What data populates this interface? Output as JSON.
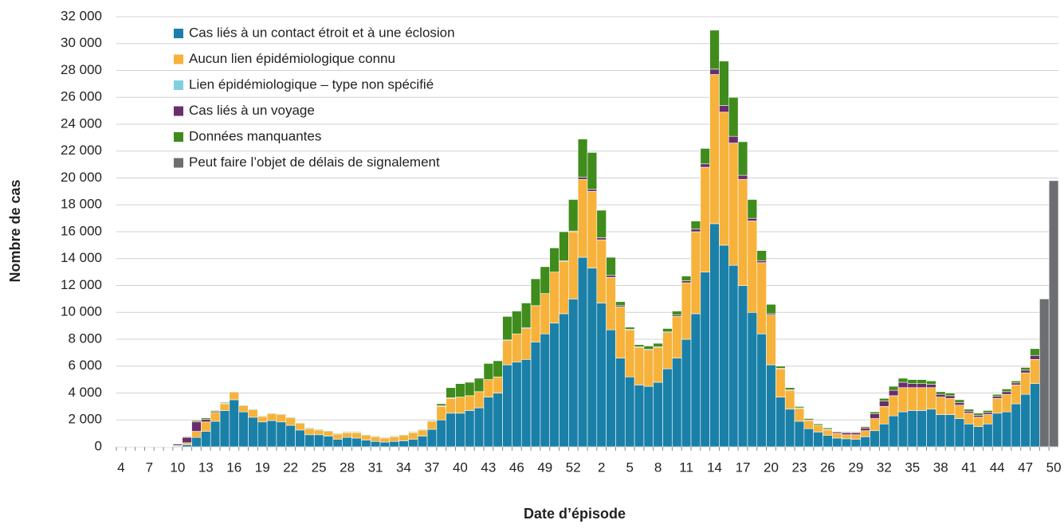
{
  "chart_data": {
    "type": "stacked_bar",
    "x_label": "Date d’épisode",
    "y_label": "Nombre de cas",
    "categories": [
      4,
      null,
      null,
      7,
      null,
      null,
      10,
      null,
      null,
      13,
      null,
      null,
      16,
      null,
      null,
      19,
      null,
      null,
      22,
      null,
      null,
      25,
      null,
      null,
      28,
      null,
      null,
      31,
      null,
      null,
      34,
      null,
      null,
      37,
      null,
      null,
      40,
      null,
      null,
      43,
      null,
      null,
      46,
      null,
      null,
      49,
      null,
      null,
      52,
      null,
      null,
      2,
      null,
      null,
      5,
      null,
      null,
      8,
      null,
      null,
      11,
      null,
      null,
      14,
      null,
      null,
      17,
      null,
      null,
      20,
      null,
      null,
      23,
      null,
      null,
      26,
      null,
      null,
      29,
      null,
      null,
      32,
      null,
      null,
      35,
      null,
      null,
      38,
      null,
      null,
      41,
      null,
      null,
      44,
      null,
      null,
      47,
      null,
      null,
      50
    ],
    "ylim": [
      0,
      32000
    ],
    "yticks": [
      0,
      {
        "value": 2000,
        "label": "2 000"
      },
      {
        "value": 4000,
        "label": "4 000"
      },
      {
        "value": 6000,
        "label": "6 000"
      },
      {
        "value": 8000,
        "label": "8 000"
      },
      {
        "value": 10000,
        "label": "10 000"
      },
      {
        "value": 12000,
        "label": "12 000"
      },
      {
        "value": 14000,
        "label": "14 000"
      },
      {
        "value": 16000,
        "label": "16 000"
      },
      {
        "value": 18000,
        "label": "18 000"
      },
      {
        "value": 20000,
        "label": "20 000"
      },
      {
        "value": 22000,
        "label": "22 000"
      },
      {
        "value": 24000,
        "label": "24 000"
      },
      {
        "value": 26000,
        "label": "26 000"
      },
      {
        "value": 28000,
        "label": "28 000"
      },
      {
        "value": 30000,
        "label": "30 000"
      },
      {
        "value": 32000,
        "label": "32 000"
      }
    ],
    "grid": true,
    "legend": "top-left",
    "series": [
      {
        "name": "Cas liés à un contact étroit et à une éclosion",
        "color": "#1a80a8",
        "values": [
          0,
          0,
          0,
          0,
          0,
          0,
          50,
          150,
          700,
          1150,
          1900,
          2700,
          3500,
          2600,
          2200,
          1850,
          1950,
          1850,
          1600,
          1250,
          900,
          900,
          800,
          550,
          700,
          650,
          500,
          400,
          350,
          400,
          450,
          550,
          800,
          1300,
          2000,
          2500,
          2500,
          2700,
          2900,
          3700,
          4000,
          6100,
          6300,
          6500,
          7800,
          8400,
          9200,
          9900,
          11000,
          14100,
          13300,
          10700,
          8700,
          6600,
          5200,
          4600,
          4500,
          4800,
          5800,
          6600,
          8000,
          9900,
          13000,
          16600,
          15000,
          13500,
          12000,
          10000,
          8400,
          6100,
          3700,
          2800,
          1900,
          1350,
          1100,
          850,
          650,
          600,
          550,
          750,
          1200,
          1700,
          2300,
          2600,
          2700,
          2700,
          2800,
          2400,
          2400,
          2100,
          1700,
          1500,
          1700,
          2500,
          2600,
          3200,
          3900,
          4700,
          null,
          null
        ]
      },
      {
        "name": "Aucun lien épidémiologique connu",
        "color": "#f7b23b",
        "values": [
          10,
          10,
          10,
          10,
          20,
          30,
          50,
          150,
          450,
          700,
          650,
          500,
          550,
          450,
          550,
          400,
          500,
          550,
          550,
          500,
          450,
          350,
          350,
          400,
          350,
          400,
          350,
          350,
          300,
          350,
          400,
          500,
          450,
          600,
          1000,
          1100,
          1200,
          1100,
          1200,
          1300,
          1200,
          1800,
          2100,
          2300,
          2700,
          3000,
          3800,
          3900,
          5000,
          5800,
          5700,
          4700,
          3900,
          3800,
          3500,
          2800,
          2700,
          2600,
          2700,
          3100,
          4200,
          6100,
          7800,
          11100,
          9900,
          9100,
          7900,
          6800,
          5300,
          3700,
          2100,
          1400,
          950,
          600,
          500,
          400,
          350,
          300,
          350,
          450,
          900,
          1300,
          1500,
          1800,
          1700,
          1700,
          1600,
          1300,
          1200,
          1000,
          800,
          700,
          700,
          1100,
          1300,
          1400,
          1600,
          1800,
          null,
          null
        ]
      },
      {
        "name": "Lien épidémiologique – type non spécifié",
        "color": "#7fcfe0",
        "values": [
          0,
          0,
          0,
          0,
          0,
          0,
          0,
          0,
          0,
          0,
          0,
          0,
          0,
          0,
          0,
          0,
          0,
          0,
          0,
          0,
          0,
          0,
          0,
          0,
          0,
          0,
          0,
          0,
          0,
          0,
          0,
          0,
          0,
          0,
          0,
          0,
          0,
          0,
          0,
          0,
          0,
          0,
          0,
          0,
          0,
          0,
          0,
          0,
          0,
          0,
          0,
          0,
          0,
          0,
          0,
          0,
          0,
          0,
          0,
          0,
          0,
          0,
          0,
          0,
          0,
          0,
          0,
          0,
          0,
          0,
          0,
          0,
          0,
          0,
          0,
          0,
          0,
          0,
          0,
          0,
          0,
          0,
          0,
          0,
          0,
          0,
          0,
          0,
          0,
          0,
          0,
          0,
          0,
          0,
          0,
          0,
          0,
          0,
          null,
          null
        ]
      },
      {
        "name": "Cas liés à un voyage",
        "color": "#6a2d6e",
        "values": [
          0,
          0,
          0,
          0,
          0,
          0,
          100,
          400,
          700,
          200,
          80,
          30,
          0,
          0,
          0,
          0,
          0,
          0,
          0,
          0,
          0,
          0,
          0,
          0,
          0,
          0,
          0,
          0,
          0,
          0,
          0,
          0,
          0,
          0,
          50,
          50,
          0,
          0,
          0,
          0,
          0,
          50,
          0,
          50,
          0,
          0,
          0,
          50,
          50,
          150,
          150,
          150,
          150,
          100,
          50,
          50,
          50,
          50,
          50,
          100,
          150,
          200,
          250,
          400,
          500,
          500,
          300,
          200,
          150,
          100,
          50,
          50,
          50,
          50,
          0,
          50,
          100,
          150,
          150,
          200,
          350,
          400,
          400,
          400,
          300,
          300,
          250,
          200,
          200,
          200,
          150,
          150,
          150,
          150,
          200,
          150,
          200,
          300,
          null,
          null
        ]
      },
      {
        "name": "Données manquantes",
        "color": "#3f8c1c",
        "values": [
          0,
          0,
          0,
          0,
          0,
          0,
          0,
          50,
          100,
          100,
          70,
          70,
          50,
          50,
          50,
          50,
          50,
          50,
          50,
          50,
          50,
          50,
          50,
          50,
          50,
          50,
          50,
          50,
          50,
          50,
          50,
          50,
          50,
          50,
          150,
          750,
          1000,
          1000,
          1000,
          1200,
          1200,
          1750,
          1700,
          1850,
          2000,
          2000,
          1800,
          2150,
          2350,
          2850,
          2750,
          2050,
          1350,
          300,
          150,
          150,
          250,
          250,
          250,
          300,
          350,
          600,
          1150,
          2900,
          3300,
          2900,
          2500,
          1400,
          750,
          700,
          150,
          150,
          100,
          100,
          100,
          100,
          50,
          50,
          50,
          100,
          150,
          200,
          300,
          300,
          300,
          300,
          250,
          200,
          200,
          200,
          150,
          150,
          150,
          150,
          200,
          150,
          200,
          500,
          null,
          null
        ]
      },
      {
        "name": "Peut faire l’objet de délais de signalement",
        "color": "#6d6e71",
        "values": [
          null,
          null,
          null,
          null,
          null,
          null,
          null,
          null,
          null,
          null,
          null,
          null,
          null,
          null,
          null,
          null,
          null,
          null,
          null,
          null,
          null,
          null,
          null,
          null,
          null,
          null,
          null,
          null,
          null,
          null,
          null,
          null,
          null,
          null,
          null,
          null,
          null,
          null,
          null,
          null,
          null,
          null,
          null,
          null,
          null,
          null,
          null,
          null,
          null,
          null,
          null,
          null,
          null,
          null,
          null,
          null,
          null,
          null,
          null,
          null,
          null,
          null,
          null,
          null,
          null,
          null,
          null,
          null,
          null,
          null,
          null,
          null,
          null,
          null,
          null,
          null,
          null,
          null,
          null,
          null,
          null,
          null,
          null,
          null,
          null,
          null,
          null,
          null,
          null,
          null,
          null,
          null,
          null,
          null,
          null,
          null,
          null,
          null,
          11000,
          19800
        ]
      }
    ]
  }
}
